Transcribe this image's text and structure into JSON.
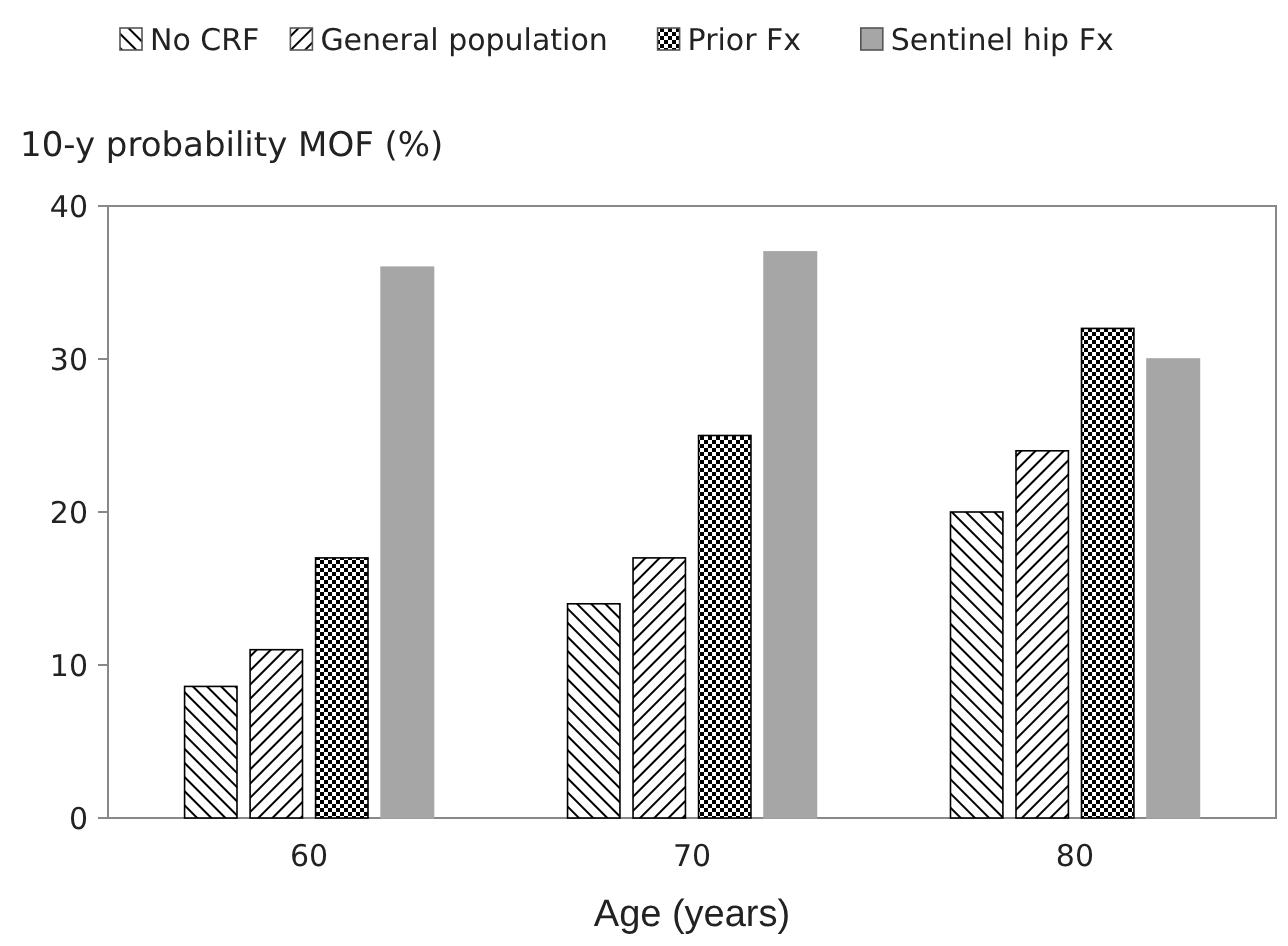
{
  "chart_data": {
    "type": "bar",
    "ylabel": "10-y probability MOF (%)",
    "xlabel": "Age (years)",
    "categories": [
      "60",
      "70",
      "80"
    ],
    "series": [
      {
        "name": "No CRF",
        "color": "#000000",
        "values": [
          8.6,
          14,
          20
        ]
      },
      {
        "name": "General population",
        "color": "#000000",
        "values": [
          11,
          17,
          24
        ]
      },
      {
        "name": "Prior Fx",
        "color": "#000000",
        "values": [
          17,
          25,
          32
        ]
      },
      {
        "name": "Sentinel hip Fx",
        "color": "#a6a6a6",
        "values": [
          36,
          37,
          30
        ]
      }
    ],
    "ylim": [
      0,
      40
    ],
    "yticks": [
      0,
      10,
      20,
      30,
      40
    ],
    "grid": false,
    "legend": "top"
  }
}
